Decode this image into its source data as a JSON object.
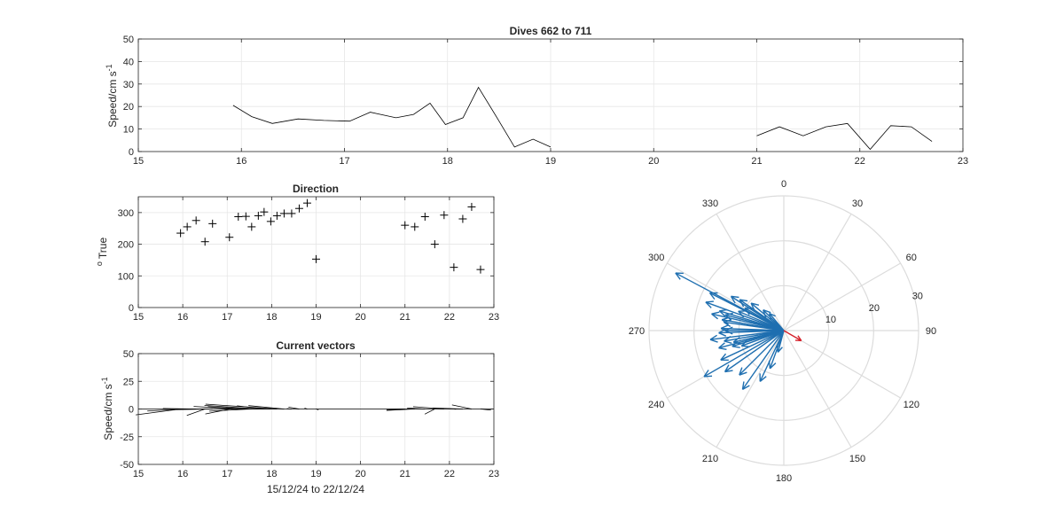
{
  "chart_data": [
    {
      "type": "line",
      "title": "Dives 662 to 711",
      "xlabel": "",
      "ylabel": "Speed/cm s",
      "ylabel_sup": "-1",
      "xlim": [
        15,
        23
      ],
      "ylim": [
        0,
        50
      ],
      "xticks": [
        "15",
        "16",
        "17",
        "18",
        "19",
        "20",
        "21",
        "22",
        "23"
      ],
      "yticks": [
        "0",
        "10",
        "20",
        "30",
        "40",
        "50"
      ],
      "grid": true,
      "segments": [
        {
          "x": [
            15.92,
            16.1,
            16.3,
            16.55,
            16.8,
            17.05,
            17.25,
            17.5,
            17.67,
            17.83,
            17.98,
            18.15,
            18.3,
            18.48,
            18.65,
            18.83,
            19.0
          ],
          "y": [
            20.5,
            15.5,
            12.5,
            14.5,
            13.8,
            13.5,
            17.5,
            15,
            16.5,
            21.5,
            12,
            15,
            28.5,
            15,
            2,
            5.5,
            2
          ]
        },
        {
          "x": [
            21.0,
            21.22,
            21.45,
            21.67,
            21.88,
            22.1,
            22.3,
            22.5,
            22.7
          ],
          "y": [
            7,
            11,
            7,
            11,
            12.5,
            1,
            11.5,
            11,
            4.5
          ]
        }
      ]
    },
    {
      "type": "scatter",
      "title": "Direction",
      "xlabel": "",
      "ylabel": "True",
      "ylabel_sup": "o",
      "xlim": [
        15,
        23
      ],
      "ylim": [
        0,
        350
      ],
      "xticks": [
        "15",
        "16",
        "17",
        "18",
        "19",
        "20",
        "21",
        "22",
        "23"
      ],
      "yticks": [
        "0",
        "100",
        "200",
        "300"
      ],
      "grid": true,
      "marker": "+",
      "x": [
        15.95,
        16.1,
        16.3,
        16.5,
        16.67,
        17.05,
        17.25,
        17.42,
        17.55,
        17.7,
        17.83,
        17.98,
        18.12,
        18.28,
        18.45,
        18.62,
        18.8,
        19.0,
        21.0,
        21.22,
        21.45,
        21.67,
        21.88,
        22.1,
        22.3,
        22.5,
        22.7
      ],
      "y": [
        235,
        255,
        275,
        208,
        265,
        222,
        287,
        288,
        255,
        290,
        302,
        272,
        290,
        297,
        297,
        313,
        330,
        153,
        260,
        255,
        287,
        200,
        292,
        127,
        280,
        318,
        120
      ]
    },
    {
      "type": "quiver",
      "title": "Current vectors",
      "xlabel": "15/12/24 to 22/12/24",
      "ylabel": "Speed/cm s",
      "ylabel_sup": "-1",
      "xlim": [
        15,
        23
      ],
      "ylim": [
        -50,
        50
      ],
      "xticks": [
        "15",
        "16",
        "17",
        "18",
        "19",
        "20",
        "21",
        "22",
        "23"
      ],
      "yticks": [
        "-50",
        "-25",
        "0",
        "25",
        "50"
      ],
      "grid": true,
      "x": [
        15.95,
        16.1,
        16.3,
        16.5,
        16.67,
        17.05,
        17.25,
        17.42,
        17.55,
        17.7,
        17.83,
        17.98,
        18.12,
        18.28,
        18.45,
        18.62,
        18.8,
        19.0,
        21.0,
        21.22,
        21.45,
        21.67,
        21.88,
        22.1,
        22.3,
        22.5,
        22.7
      ],
      "speed": [
        20.5,
        15.5,
        12.5,
        14.5,
        13.8,
        13.5,
        17.5,
        15,
        16.5,
        21.5,
        12,
        15,
        28.5,
        15,
        2,
        5.5,
        2,
        2,
        7,
        11,
        7,
        11,
        12.5,
        1,
        11.5,
        11,
        4.5
      ],
      "direction": [
        235,
        255,
        275,
        208,
        265,
        222,
        287,
        288,
        255,
        290,
        302,
        272,
        290,
        297,
        297,
        313,
        330,
        153,
        260,
        255,
        287,
        200,
        292,
        127,
        280,
        318,
        120
      ]
    },
    {
      "type": "polar",
      "title": "",
      "theta_labels": [
        "0",
        "30",
        "60",
        "90",
        "120",
        "150",
        "180",
        "210",
        "240",
        "270",
        "300",
        "330"
      ],
      "r_labels": [
        "10",
        "20",
        "30"
      ],
      "rlim": [
        0,
        30
      ],
      "vectors_blue": [
        [
          298,
          27.3
        ],
        [
          297,
          18.5
        ],
        [
          303,
          14
        ],
        [
          300,
          10
        ],
        [
          293,
          11
        ],
        [
          305,
          12
        ],
        [
          310,
          9.5
        ],
        [
          315,
          6.5
        ],
        [
          320,
          5
        ],
        [
          283,
          16.5
        ],
        [
          287,
          15
        ],
        [
          280,
          14
        ],
        [
          278,
          13.5
        ],
        [
          285,
          13.5
        ],
        [
          272,
          14
        ],
        [
          270,
          13
        ],
        [
          268,
          14.5
        ],
        [
          263,
          16.5
        ],
        [
          260,
          13.5
        ],
        [
          257,
          11.5
        ],
        [
          255,
          15
        ],
        [
          253,
          12
        ],
        [
          250,
          10
        ],
        [
          245,
          15.5
        ],
        [
          240,
          20.5
        ],
        [
          235,
          16
        ],
        [
          215,
          16
        ],
        [
          225,
          14
        ],
        [
          205,
          12.5
        ],
        [
          200,
          9
        ],
        [
          195,
          5
        ],
        [
          290,
          18.5
        ]
      ],
      "vector_red": [
        120,
        4.5
      ]
    }
  ]
}
